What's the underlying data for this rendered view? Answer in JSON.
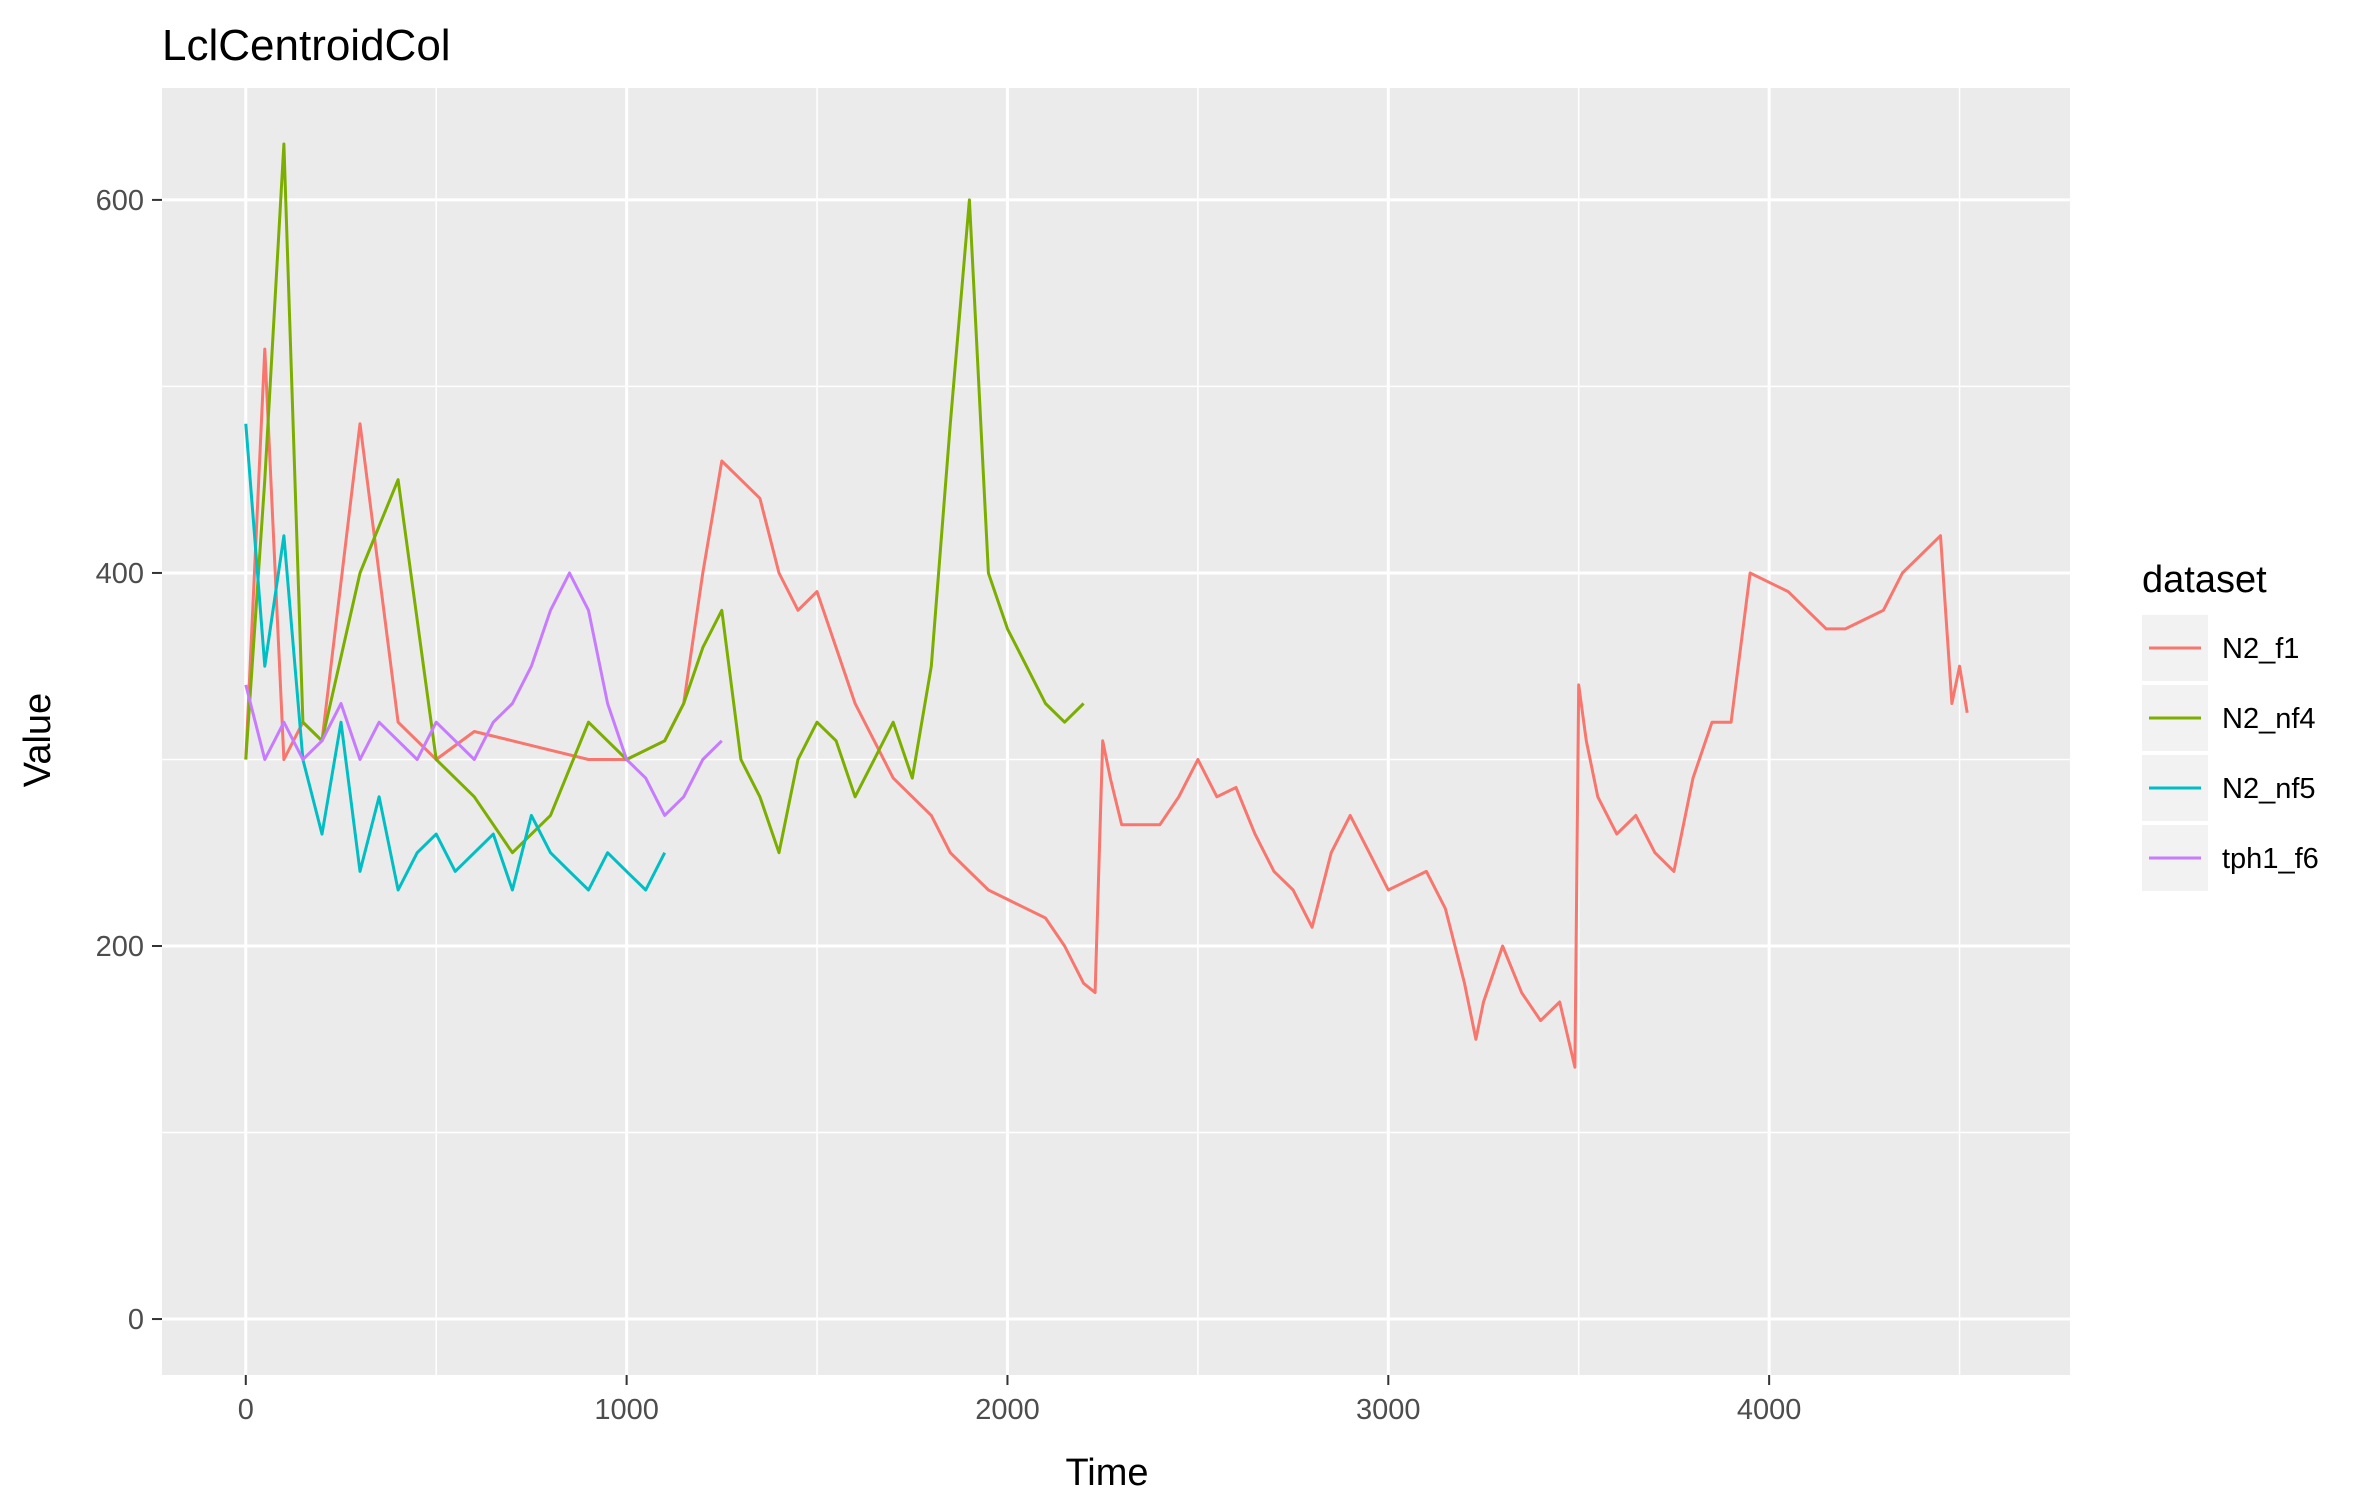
{
  "chart_data": {
    "type": "line",
    "title": "LclCentroidCol",
    "xlabel": "Time",
    "ylabel": "Value",
    "xlim": [
      -220,
      4790
    ],
    "ylim": [
      -30,
      660
    ],
    "x_ticks": [
      0,
      1000,
      2000,
      3000,
      4000
    ],
    "y_ticks": [
      0,
      200,
      400,
      600
    ],
    "grid": true,
    "legend": {
      "title": "dataset",
      "position": "right",
      "entries": [
        "N2_f1",
        "N2_nf4",
        "N2_nf5",
        "tph1_f6"
      ]
    },
    "colors": {
      "N2_f1": "#F8766D",
      "N2_nf4": "#7CAE00",
      "N2_nf5": "#00BFC4",
      "tph1_f6": "#C77CFF",
      "panel_bg": "#EBEBEB",
      "grid": "#FFFFFF"
    },
    "series": [
      {
        "name": "N2_f1",
        "x": [
          0,
          50,
          100,
          150,
          200,
          300,
          400,
          500,
          600,
          700,
          800,
          900,
          1000,
          1100,
          1150,
          1200,
          1250,
          1300,
          1350,
          1400,
          1450,
          1500,
          1550,
          1600,
          1650,
          1700,
          1750,
          1800,
          1850,
          1900,
          1950,
          2000,
          2050,
          2100,
          2150,
          2200,
          2230,
          2250,
          2270,
          2300,
          2400,
          2450,
          2500,
          2550,
          2600,
          2650,
          2700,
          2750,
          2800,
          2850,
          2900,
          2950,
          3000,
          3050,
          3100,
          3150,
          3200,
          3230,
          3250,
          3300,
          3350,
          3400,
          3450,
          3490,
          3500,
          3520,
          3550,
          3600,
          3650,
          3700,
          3750,
          3800,
          3850,
          3900,
          3950,
          4000,
          4050,
          4100,
          4150,
          4200,
          4250,
          4300,
          4350,
          4400,
          4450,
          4480,
          4500,
          4520
        ],
        "y": [
          300,
          520,
          300,
          320,
          310,
          480,
          320,
          300,
          315,
          310,
          305,
          300,
          300,
          310,
          330,
          400,
          460,
          450,
          440,
          400,
          380,
          390,
          360,
          330,
          310,
          290,
          280,
          270,
          250,
          240,
          230,
          225,
          220,
          215,
          200,
          180,
          175,
          310,
          290,
          265,
          265,
          280,
          300,
          280,
          285,
          260,
          240,
          230,
          210,
          250,
          270,
          250,
          230,
          235,
          240,
          220,
          180,
          150,
          170,
          200,
          175,
          160,
          170,
          135,
          340,
          310,
          280,
          260,
          270,
          250,
          240,
          290,
          320,
          320,
          400,
          395,
          390,
          380,
          370,
          370,
          375,
          380,
          400,
          410,
          420,
          330,
          350,
          325
        ]
      },
      {
        "name": "N2_nf4",
        "x": [
          0,
          50,
          100,
          150,
          200,
          300,
          400,
          500,
          600,
          700,
          800,
          900,
          1000,
          1100,
          1150,
          1200,
          1250,
          1300,
          1350,
          1400,
          1450,
          1500,
          1550,
          1600,
          1650,
          1700,
          1750,
          1800,
          1850,
          1900,
          1950,
          2000,
          2050,
          2100,
          2150,
          2200
        ],
        "y": [
          300,
          450,
          630,
          320,
          310,
          400,
          450,
          300,
          280,
          250,
          270,
          320,
          300,
          310,
          330,
          360,
          380,
          300,
          280,
          250,
          300,
          320,
          310,
          280,
          300,
          320,
          290,
          350,
          480,
          600,
          400,
          370,
          350,
          330,
          320,
          330
        ]
      },
      {
        "name": "N2_nf5",
        "x": [
          0,
          50,
          100,
          150,
          200,
          250,
          300,
          350,
          400,
          450,
          500,
          550,
          600,
          650,
          700,
          750,
          800,
          850,
          900,
          950,
          1000,
          1050,
          1100
        ],
        "y": [
          480,
          350,
          420,
          300,
          260,
          320,
          240,
          280,
          230,
          250,
          260,
          240,
          250,
          260,
          230,
          270,
          250,
          240,
          230,
          250,
          240,
          230,
          250
        ]
      },
      {
        "name": "tph1_f6",
        "x": [
          0,
          50,
          100,
          150,
          200,
          250,
          300,
          350,
          400,
          450,
          500,
          550,
          600,
          650,
          700,
          750,
          800,
          850,
          900,
          950,
          1000,
          1050,
          1100,
          1150,
          1200,
          1250
        ],
        "y": [
          340,
          300,
          320,
          300,
          310,
          330,
          300,
          320,
          310,
          300,
          320,
          310,
          300,
          320,
          330,
          350,
          380,
          400,
          380,
          330,
          300,
          290,
          270,
          280,
          300,
          310
        ]
      }
    ]
  }
}
